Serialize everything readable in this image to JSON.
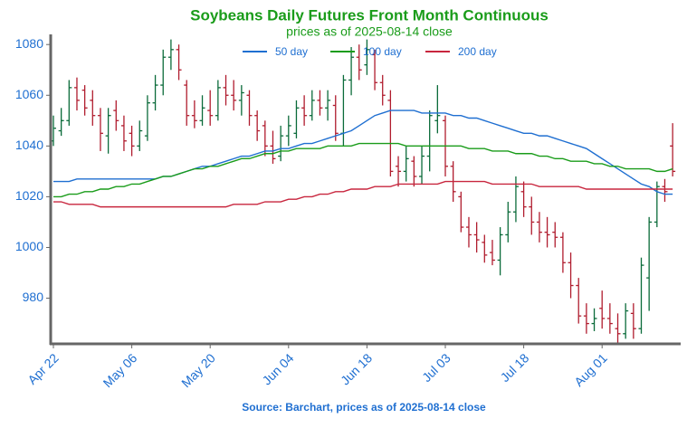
{
  "chart_data": {
    "type": "ohlc",
    "title": "Soybeans Daily Futures Front Month Continuous",
    "subtitle": "prices as of 2025-08-14 close",
    "source": "Source: Barchart, prices as of 2025-08-14 close",
    "categories": [
      "Apr 22",
      null,
      null,
      null,
      null,
      null,
      null,
      null,
      null,
      null,
      "May 06",
      null,
      null,
      null,
      null,
      null,
      null,
      null,
      null,
      null,
      "May 20",
      null,
      null,
      null,
      null,
      null,
      null,
      null,
      null,
      null,
      "Jun 04",
      null,
      null,
      null,
      null,
      null,
      null,
      null,
      null,
      null,
      "Jun 18",
      null,
      null,
      null,
      null,
      null,
      null,
      null,
      null,
      null,
      "Jul 03",
      null,
      null,
      null,
      null,
      null,
      null,
      null,
      null,
      null,
      "Jul 18",
      null,
      null,
      null,
      null,
      null,
      null,
      null,
      null,
      null,
      "Aug 01",
      null,
      null,
      null,
      null,
      null,
      null,
      null,
      null,
      null
    ],
    "ohlc": [
      [
        1042,
        1052,
        1040,
        1047
      ],
      [
        1046,
        1055,
        1044,
        1050
      ],
      [
        1050,
        1066,
        1048,
        1063
      ],
      [
        1063,
        1067,
        1054,
        1058
      ],
      [
        1062,
        1064,
        1052,
        1055
      ],
      [
        1058,
        1062,
        1048,
        1052
      ],
      [
        1052,
        1055,
        1038,
        1045
      ],
      [
        1044,
        1055,
        1037,
        1052
      ],
      [
        1054,
        1058,
        1046,
        1050
      ],
      [
        1048,
        1052,
        1038,
        1042
      ],
      [
        1045,
        1048,
        1036,
        1040
      ],
      [
        1040,
        1050,
        1038,
        1046
      ],
      [
        1044,
        1060,
        1042,
        1057
      ],
      [
        1057,
        1068,
        1054,
        1064
      ],
      [
        1064,
        1078,
        1060,
        1075
      ],
      [
        1075,
        1082,
        1070,
        1078
      ],
      [
        1078,
        1080,
        1066,
        1070
      ],
      [
        1064,
        1066,
        1048,
        1052
      ],
      [
        1052,
        1058,
        1047,
        1050
      ],
      [
        1050,
        1060,
        1048,
        1055
      ],
      [
        1054,
        1062,
        1048,
        1052
      ],
      [
        1052,
        1066,
        1050,
        1063
      ],
      [
        1063,
        1068,
        1056,
        1060
      ],
      [
        1060,
        1066,
        1054,
        1058
      ],
      [
        1058,
        1064,
        1052,
        1061
      ],
      [
        1060,
        1062,
        1048,
        1052
      ],
      [
        1052,
        1054,
        1042,
        1046
      ],
      [
        1048,
        1050,
        1036,
        1040
      ],
      [
        1040,
        1046,
        1033,
        1035
      ],
      [
        1036,
        1048,
        1034,
        1044
      ],
      [
        1044,
        1052,
        1040,
        1048
      ],
      [
        1045,
        1058,
        1043,
        1055
      ],
      [
        1055,
        1060,
        1048,
        1052
      ],
      [
        1052,
        1062,
        1050,
        1058
      ],
      [
        1058,
        1062,
        1052,
        1055
      ],
      [
        1055,
        1062,
        1050,
        1058
      ],
      [
        1056,
        1060,
        1042,
        1045
      ],
      [
        1045,
        1068,
        1040,
        1066
      ],
      [
        1066,
        1079,
        1060,
        1075
      ],
      [
        1075,
        1080,
        1066,
        1070
      ],
      [
        1072,
        1082,
        1068,
        1078
      ],
      [
        1076,
        1078,
        1062,
        1065
      ],
      [
        1065,
        1068,
        1056,
        1060
      ],
      [
        1058,
        1062,
        1028,
        1030
      ],
      [
        1032,
        1036,
        1024,
        1030
      ],
      [
        1030,
        1040,
        1026,
        1035
      ],
      [
        1034,
        1036,
        1024,
        1028
      ],
      [
        1028,
        1040,
        1025,
        1036
      ],
      [
        1036,
        1054,
        1030,
        1052
      ],
      [
        1050,
        1064,
        1045,
        1052
      ],
      [
        1050,
        1052,
        1028,
        1032
      ],
      [
        1032,
        1034,
        1018,
        1022
      ],
      [
        1020,
        1022,
        1006,
        1008
      ],
      [
        1008,
        1012,
        1000,
        1005
      ],
      [
        1005,
        1010,
        998,
        1003
      ],
      [
        1002,
        1005,
        994,
        997
      ],
      [
        998,
        1003,
        993,
        995
      ],
      [
        995,
        1008,
        989,
        1005
      ],
      [
        1005,
        1018,
        1002,
        1014
      ],
      [
        1014,
        1028,
        1010,
        1024
      ],
      [
        1022,
        1026,
        1012,
        1016
      ],
      [
        1016,
        1020,
        1005,
        1010
      ],
      [
        1010,
        1014,
        1002,
        1006
      ],
      [
        1006,
        1012,
        1000,
        1005
      ],
      [
        1006,
        1010,
        1000,
        1004
      ],
      [
        1004,
        1006,
        990,
        994
      ],
      [
        994,
        998,
        980,
        985
      ],
      [
        985,
        988,
        970,
        973
      ],
      [
        973,
        978,
        966,
        970
      ],
      [
        970,
        976,
        967,
        972
      ],
      [
        976,
        983,
        968,
        972
      ],
      [
        972,
        978,
        966,
        970
      ],
      [
        968,
        974,
        962,
        966
      ],
      [
        966,
        978,
        964,
        975
      ],
      [
        974,
        978,
        964,
        968
      ],
      [
        968,
        996,
        966,
        993
      ],
      [
        988,
        1012,
        975,
        1010
      ],
      [
        1010,
        1026,
        1008,
        1024
      ],
      [
        1024,
        1027,
        1018,
        1022
      ],
      [
        1040,
        1049,
        1028,
        1030
      ]
    ],
    "up_color": "#0b6b3a",
    "down_color": "#b01c2e",
    "series": [
      {
        "name": "50 day",
        "color": "#1f6fd1",
        "values": [
          1026,
          1026,
          1026,
          1027,
          1027,
          1027,
          1027,
          1027,
          1027,
          1027,
          1027,
          1027,
          1027,
          1027,
          1028,
          1028,
          1029,
          1030,
          1031,
          1032,
          1032,
          1033,
          1034,
          1035,
          1036,
          1036,
          1037,
          1038,
          1038,
          1039,
          1039,
          1040,
          1041,
          1041,
          1042,
          1043,
          1044,
          1045,
          1046,
          1048,
          1050,
          1052,
          1053,
          1054,
          1054,
          1054,
          1054,
          1053,
          1053,
          1053,
          1053,
          1052,
          1052,
          1051,
          1051,
          1050,
          1049,
          1048,
          1047,
          1046,
          1045,
          1045,
          1044,
          1044,
          1043,
          1042,
          1041,
          1040,
          1039,
          1037,
          1035,
          1033,
          1031,
          1029,
          1027,
          1025,
          1024,
          1022,
          1021,
          1021
        ]
      },
      {
        "name": "100 day",
        "color": "#1a9c1a",
        "values": [
          1020,
          1020,
          1021,
          1021,
          1022,
          1022,
          1023,
          1023,
          1024,
          1024,
          1025,
          1025,
          1026,
          1027,
          1028,
          1028,
          1029,
          1030,
          1031,
          1031,
          1032,
          1032,
          1033,
          1034,
          1035,
          1035,
          1036,
          1037,
          1037,
          1038,
          1038,
          1039,
          1039,
          1039,
          1039,
          1040,
          1040,
          1040,
          1040,
          1041,
          1041,
          1041,
          1041,
          1041,
          1041,
          1040,
          1040,
          1040,
          1040,
          1040,
          1040,
          1040,
          1040,
          1039,
          1039,
          1039,
          1038,
          1038,
          1038,
          1037,
          1037,
          1037,
          1036,
          1036,
          1035,
          1035,
          1034,
          1034,
          1034,
          1033,
          1033,
          1032,
          1032,
          1031,
          1031,
          1031,
          1031,
          1030,
          1030,
          1031
        ]
      },
      {
        "name": "200 day",
        "color": "#c8263e",
        "values": [
          1018,
          1018,
          1017,
          1017,
          1017,
          1017,
          1016,
          1016,
          1016,
          1016,
          1016,
          1016,
          1016,
          1016,
          1016,
          1016,
          1016,
          1016,
          1016,
          1016,
          1016,
          1016,
          1016,
          1017,
          1017,
          1017,
          1017,
          1018,
          1018,
          1018,
          1019,
          1019,
          1020,
          1020,
          1021,
          1021,
          1022,
          1022,
          1023,
          1023,
          1023,
          1024,
          1024,
          1024,
          1025,
          1025,
          1025,
          1025,
          1025,
          1025,
          1026,
          1026,
          1026,
          1026,
          1026,
          1026,
          1025,
          1025,
          1025,
          1025,
          1025,
          1025,
          1024,
          1024,
          1024,
          1024,
          1024,
          1024,
          1023,
          1023,
          1023,
          1023,
          1023,
          1023,
          1023,
          1023,
          1023,
          1023,
          1023,
          1023
        ]
      }
    ],
    "ylim": [
      962,
      1084
    ],
    "yticks": [
      980,
      1000,
      1020,
      1040,
      1060,
      1080
    ]
  }
}
